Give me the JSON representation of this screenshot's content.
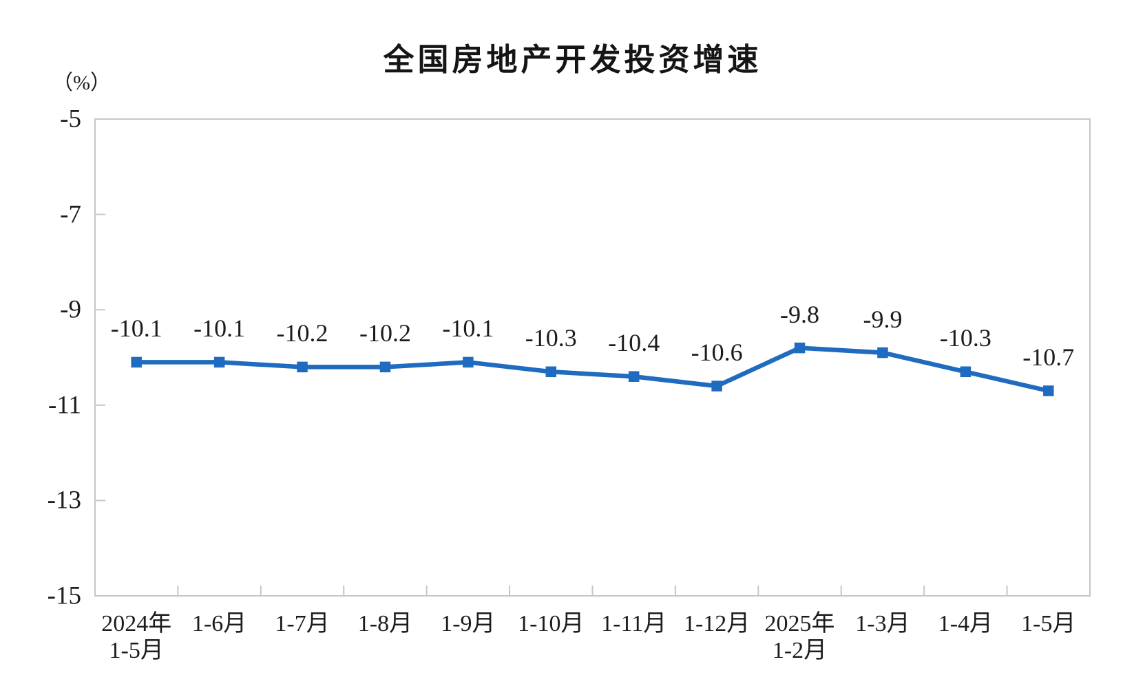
{
  "chart_data": {
    "type": "line",
    "title": "全国房地产开发投资增速",
    "unit": "（%）",
    "categories": [
      "2024年\n1-5月",
      "1-6月",
      "1-7月",
      "1-8月",
      "1-9月",
      "1-10月",
      "1-11月",
      "1-12月",
      "2025年\n1-2月",
      "1-3月",
      "1-4月",
      "1-5月"
    ],
    "values": [
      -10.1,
      -10.1,
      -10.2,
      -10.2,
      -10.1,
      -10.3,
      -10.4,
      -10.6,
      -9.8,
      -9.9,
      -10.3,
      -10.7
    ],
    "data_labels": [
      "-10.1",
      "-10.1",
      "-10.2",
      "-10.2",
      "-10.1",
      "-10.3",
      "-10.4",
      "-10.6",
      "-9.8",
      "-9.9",
      "-10.3",
      "-10.7"
    ],
    "ylim": [
      -15,
      -5
    ],
    "yticks": [
      -5,
      -7,
      -9,
      -11,
      -13,
      -15
    ],
    "ytick_labels": [
      "-5",
      "-7",
      "-9",
      "-11",
      "-13",
      "-15"
    ],
    "grid": false,
    "legend": "none",
    "marker": "square",
    "line_color": "#1e6bbf",
    "axis_color": "#c6c6c6",
    "text_color": "#1c1c1c"
  }
}
